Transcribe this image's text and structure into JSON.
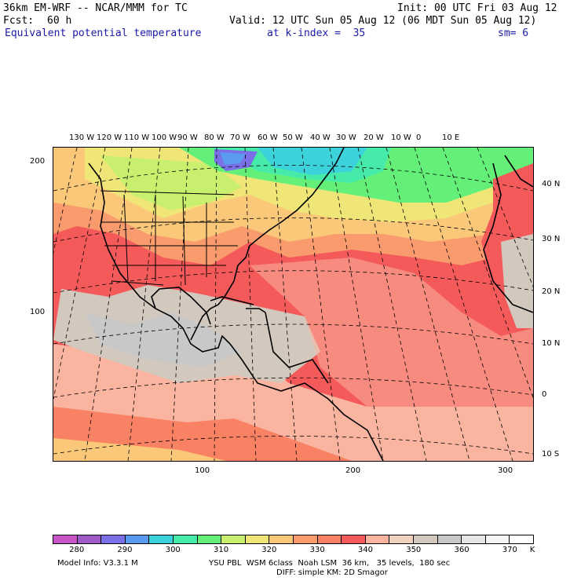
{
  "header": {
    "model": "36km EM-WRF -- NCAR/MMM for TC",
    "init": "Init: 00 UTC Fri 03 Aug 12",
    "fcst_label": "Fcst:",
    "fcst_value": "60 h",
    "valid": "Valid: 12 UTC Sun 05 Aug 12 (06 MDT Sun 05 Aug 12)",
    "field": "Equivalent potential temperature",
    "kindex": "at k-index =  35",
    "smoothing": "sm= 6"
  },
  "map": {
    "top_lon_labels": [
      "130 W",
      "120 W",
      "110 W",
      "100 W",
      "90 W",
      "80 W",
      "70 W",
      "60 W",
      "50 W",
      "40 W",
      "30 W",
      "20 W",
      "10 W",
      "0",
      "10 E"
    ],
    "right_lat_labels": [
      "40 N",
      "30 N",
      "20 N",
      "10 N",
      "0",
      "10 S"
    ],
    "left_grid_labels": [
      "200",
      "100"
    ],
    "bottom_grid_labels": [
      "100",
      "200",
      "300"
    ]
  },
  "colorbar": {
    "colors": [
      "#c855c8",
      "#a05ac8",
      "#7a6fe6",
      "#5a9bf0",
      "#3cd2dc",
      "#46ebaa",
      "#64f078",
      "#c8f06e",
      "#f0e678",
      "#fac878",
      "#fa9b6e",
      "#fa8264",
      "#f55a5a",
      "#fab4a0",
      "#f0d2be",
      "#d2c8be",
      "#c8c8c8",
      "#e6e6e6",
      "#f5f5f5",
      "#ffffff"
    ],
    "labels": [
      "280",
      "290",
      "300",
      "310",
      "320",
      "330",
      "340",
      "350",
      "360",
      "370"
    ],
    "unit": "K"
  },
  "footer": {
    "model_info": "Model Info: V3.3.1 M",
    "physics": "YSU PBL  WSM 6class  Noah LSM  36 km,   35 levels,  180 sec",
    "diffusion": "DIFF: simple KM: 2D Smagor"
  }
}
